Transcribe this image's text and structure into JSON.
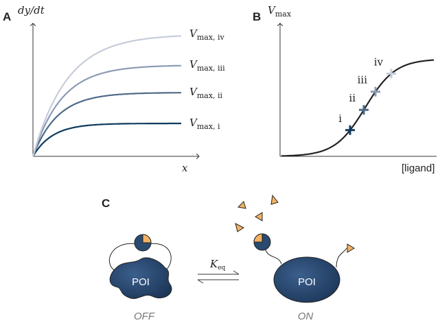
{
  "panel_a": {
    "label": "A",
    "y_axis": "dy/dt",
    "x_axis": "x",
    "curves": [
      {
        "main": "V",
        "sub": "max, i",
        "color": "#0e3a5e"
      },
      {
        "main": "V",
        "sub": "max, ii",
        "color": "#4d6a88"
      },
      {
        "main": "V",
        "sub": "max, iii",
        "color": "#8c9bb5"
      },
      {
        "main": "V",
        "sub": "max, iv",
        "color": "#c7ccda"
      }
    ]
  },
  "panel_b": {
    "label": "B",
    "y_axis": {
      "main": "V",
      "sub": "max"
    },
    "x_axis": "[ligand]",
    "points": [
      {
        "label": "i",
        "color": "#0e3a5e"
      },
      {
        "label": "ii",
        "color": "#4d6a88"
      },
      {
        "label": "iii",
        "color": "#8c9bb5"
      },
      {
        "label": "iv",
        "color": "#c7ccda"
      }
    ]
  },
  "panel_c": {
    "label": "C",
    "off_protein": "POI",
    "on_protein": "POI",
    "constant": {
      "main": "K",
      "sub": "eq"
    },
    "off_state": "OFF",
    "on_state": "ON"
  }
}
